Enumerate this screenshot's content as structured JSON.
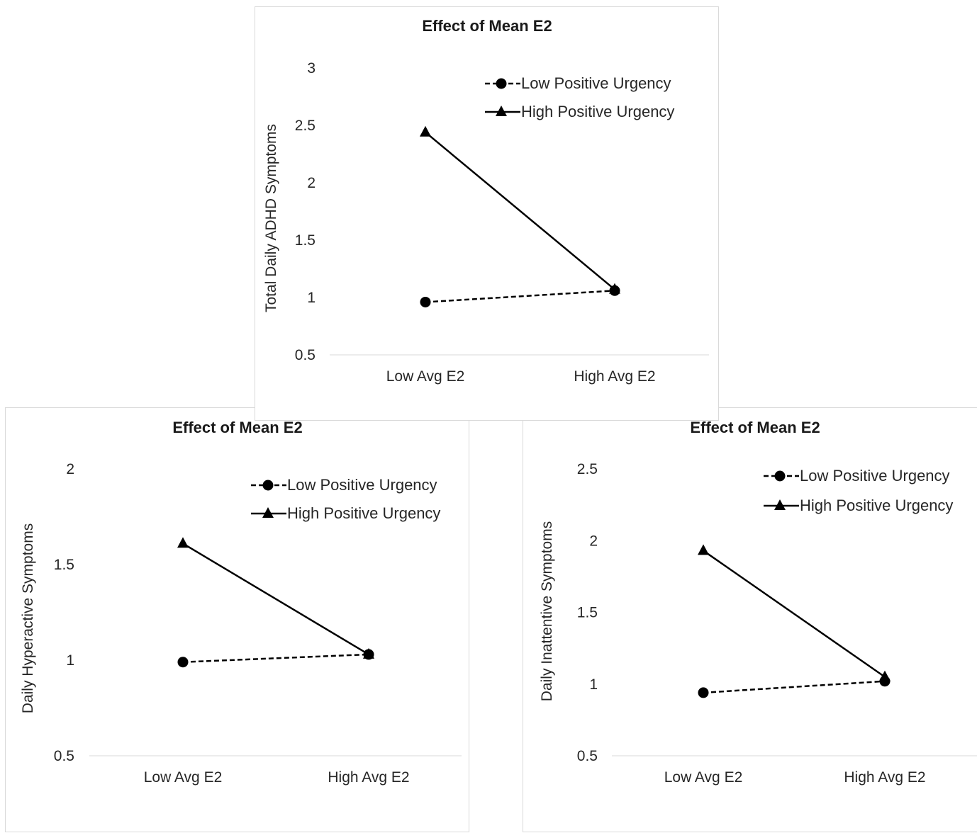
{
  "colors": {
    "series_line": "#000000",
    "gridline": "#d9d9d9",
    "text": "#262626",
    "panel_border": "#d9d9d9"
  },
  "chart_data": [
    {
      "type": "line",
      "title": "Effect of Mean E2",
      "xlabel": "",
      "ylabel": "Total Daily ADHD Symptoms",
      "categories": [
        "Low Avg E2",
        "High Avg E2"
      ],
      "ylim": [
        0.5,
        3
      ],
      "yticks": [
        "0.5",
        "1",
        "1.5",
        "2",
        "2.5",
        "3"
      ],
      "grid": "baseline only",
      "legend_position": "top-right",
      "series": [
        {
          "name": "Low Positive Urgency",
          "values": [
            0.96,
            1.06
          ],
          "line_style": "dashed",
          "marker": "circle-icon"
        },
        {
          "name": "High Positive Urgency",
          "values": [
            2.44,
            1.07
          ],
          "line_style": "solid",
          "marker": "triangle-icon"
        }
      ]
    },
    {
      "type": "line",
      "title": "Effect of Mean E2",
      "xlabel": "",
      "ylabel": "Daily Hyperactive Symptoms",
      "categories": [
        "Low Avg E2",
        "High Avg E2"
      ],
      "ylim": [
        0.5,
        2
      ],
      "yticks": [
        "0.5",
        "1",
        "1.5",
        "2"
      ],
      "grid": "baseline only",
      "legend_position": "top-right",
      "series": [
        {
          "name": "Low Positive Urgency",
          "values": [
            0.99,
            1.03
          ],
          "line_style": "dashed",
          "marker": "circle-icon"
        },
        {
          "name": "High Positive Urgency",
          "values": [
            1.61,
            1.03
          ],
          "line_style": "solid",
          "marker": "triangle-icon"
        }
      ]
    },
    {
      "type": "line",
      "title": "Effect of Mean E2",
      "xlabel": "",
      "ylabel": "Daily Inattentive Symptoms",
      "categories": [
        "Low Avg E2",
        "High Avg E2"
      ],
      "ylim": [
        0.5,
        2.5
      ],
      "yticks": [
        "0.5",
        "1",
        "1.5",
        "2",
        "2.5"
      ],
      "grid": "baseline only",
      "legend_position": "top-right",
      "series": [
        {
          "name": "Low Positive Urgency",
          "values": [
            0.94,
            1.02
          ],
          "line_style": "dashed",
          "marker": "circle-icon"
        },
        {
          "name": "High Positive Urgency",
          "values": [
            1.93,
            1.05
          ],
          "line_style": "solid",
          "marker": "triangle-icon"
        }
      ]
    }
  ]
}
